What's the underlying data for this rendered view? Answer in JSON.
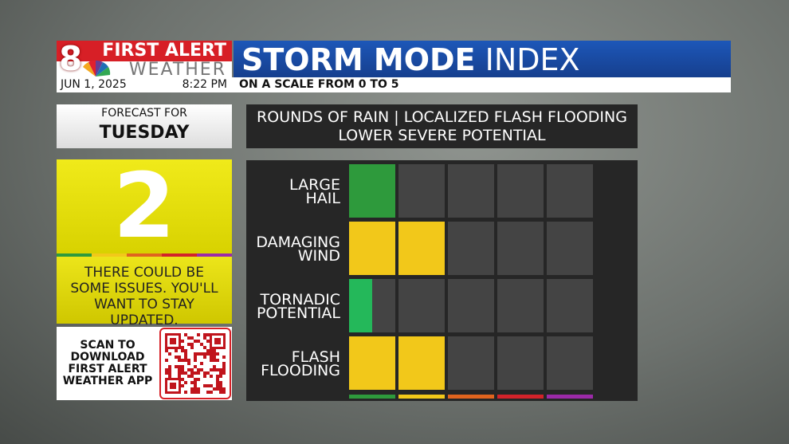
{
  "header": {
    "logo_line1": "FIRST ALERT",
    "logo_line2": "WEATHER",
    "title_bold": "STORM MODE",
    "title_light": "INDEX",
    "date": "JUN 1, 2025",
    "time": "8:22 PM",
    "subtitle": "ON A SCALE FROM 0 TO 5"
  },
  "forecast": {
    "label": "FORECAST FOR",
    "day": "TUESDAY"
  },
  "index": {
    "value": 2,
    "message": "THERE COULD BE SOME ISSUES. YOU'LL WANT TO STAY UPDATED."
  },
  "qr": {
    "text": "SCAN TO DOWNLOAD FIRST ALERT WEATHER APP"
  },
  "summary": [
    "ROUNDS OF RAIN |  LOCALIZED FLASH FLOODING",
    "LOWER SEVERE POTENTIAL"
  ],
  "threats": {
    "scale": [
      0,
      5
    ],
    "level_colors": [
      "#2e9a3c",
      "#f2c81a",
      "#e0641e",
      "#d2232a",
      "#9b2aa8"
    ],
    "rows": [
      {
        "label": [
          "LARGE",
          "HAIL"
        ],
        "value": 1,
        "color": "#2e9a3c"
      },
      {
        "label": [
          "DAMAGING",
          "WIND"
        ],
        "value": 2,
        "color": "#f2c81a"
      },
      {
        "label": [
          "TORNADIC",
          "POTENTIAL"
        ],
        "value": 0.5,
        "color": "#24b85a"
      },
      {
        "label": [
          "FLASH",
          "FLOODING"
        ],
        "value": 2,
        "color": "#f2c81a"
      }
    ]
  }
}
